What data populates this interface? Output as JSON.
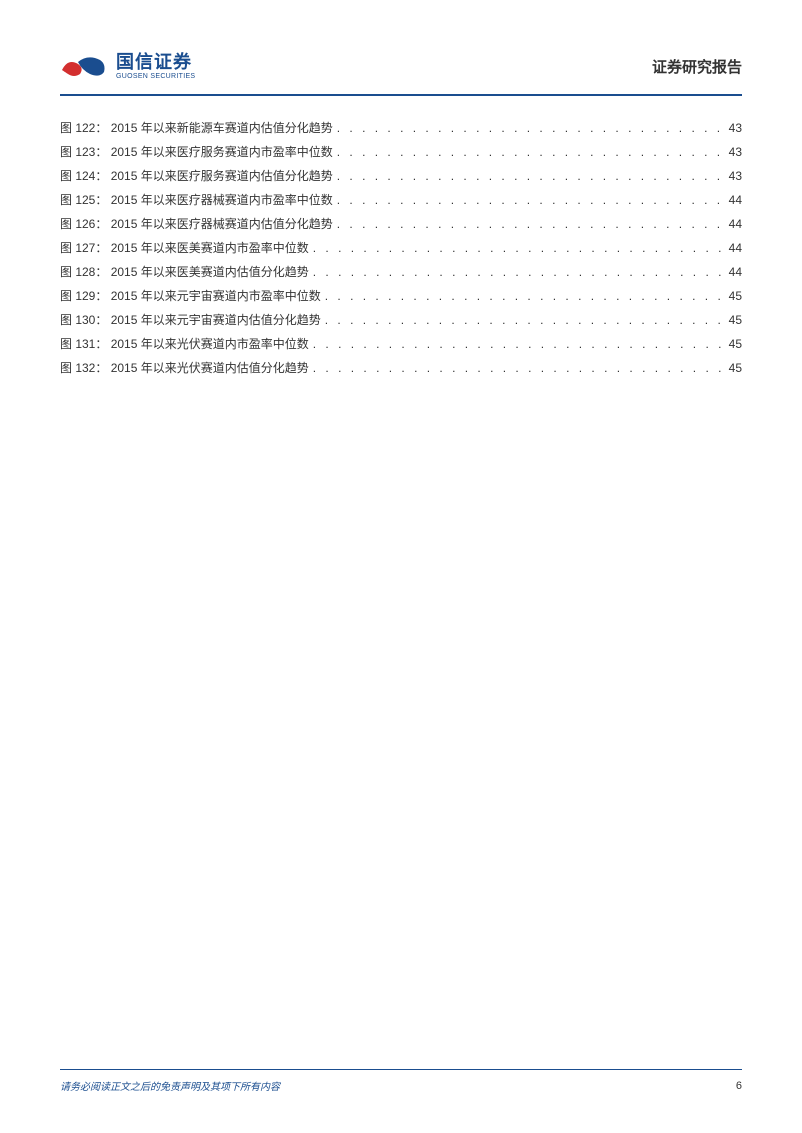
{
  "header": {
    "logo_cn": "国信证券",
    "logo_en": "GUOSEN SECURITIES",
    "report_title": "证券研究报告"
  },
  "toc": {
    "entries": [
      {
        "num": "图 122：",
        "title": "2015 年以来新能源车赛道内估值分化趋势",
        "page": "43"
      },
      {
        "num": "图 123：",
        "title": "2015 年以来医疗服务赛道内市盈率中位数",
        "page": "43"
      },
      {
        "num": "图 124：",
        "title": "2015 年以来医疗服务赛道内估值分化趋势",
        "page": "43"
      },
      {
        "num": "图 125：",
        "title": "2015 年以来医疗器械赛道内市盈率中位数",
        "page": "44"
      },
      {
        "num": "图 126：",
        "title": "2015 年以来医疗器械赛道内估值分化趋势",
        "page": "44"
      },
      {
        "num": "图 127：",
        "title": "2015 年以来医美赛道内市盈率中位数",
        "page": "44"
      },
      {
        "num": "图 128：",
        "title": "2015 年以来医美赛道内估值分化趋势",
        "page": "44"
      },
      {
        "num": "图 129：",
        "title": "2015 年以来元宇宙赛道内市盈率中位数",
        "page": "45"
      },
      {
        "num": "图 130：",
        "title": "2015 年以来元宇宙赛道内估值分化趋势",
        "page": "45"
      },
      {
        "num": "图 131：",
        "title": "2015 年以来光伏赛道内市盈率中位数",
        "page": "45"
      },
      {
        "num": "图 132：",
        "title": "2015 年以来光伏赛道内估值分化趋势",
        "page": "45"
      }
    ]
  },
  "footer": {
    "disclaimer": "请务必阅读正文之后的免责声明及其项下所有内容",
    "page_number": "6"
  },
  "colors": {
    "brand_blue": "#1a4d8f",
    "brand_red": "#d32f2f",
    "text": "#333333",
    "background": "#ffffff"
  }
}
